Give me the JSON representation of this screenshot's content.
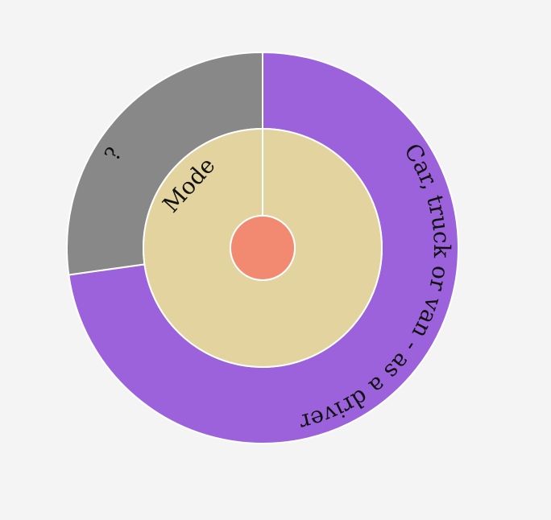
{
  "chart_data": {
    "type": "sunburst",
    "rings": [
      {
        "level": 0,
        "segments": [
          {
            "label": "",
            "value": 1,
            "color": "#f28a72"
          }
        ]
      },
      {
        "level": 1,
        "segments": [
          {
            "label": "Mode",
            "value": 1,
            "color": "#e3d39e"
          }
        ]
      },
      {
        "level": 2,
        "segments": [
          {
            "label": "Car, truck or van - as a driver",
            "value": 72.8,
            "color": "#9b62dc"
          },
          {
            "label": "?",
            "value": 27.2,
            "color": "#888888"
          }
        ]
      }
    ]
  },
  "colors": {
    "background": "#f4f4f4",
    "stroke": "#ffffff"
  }
}
